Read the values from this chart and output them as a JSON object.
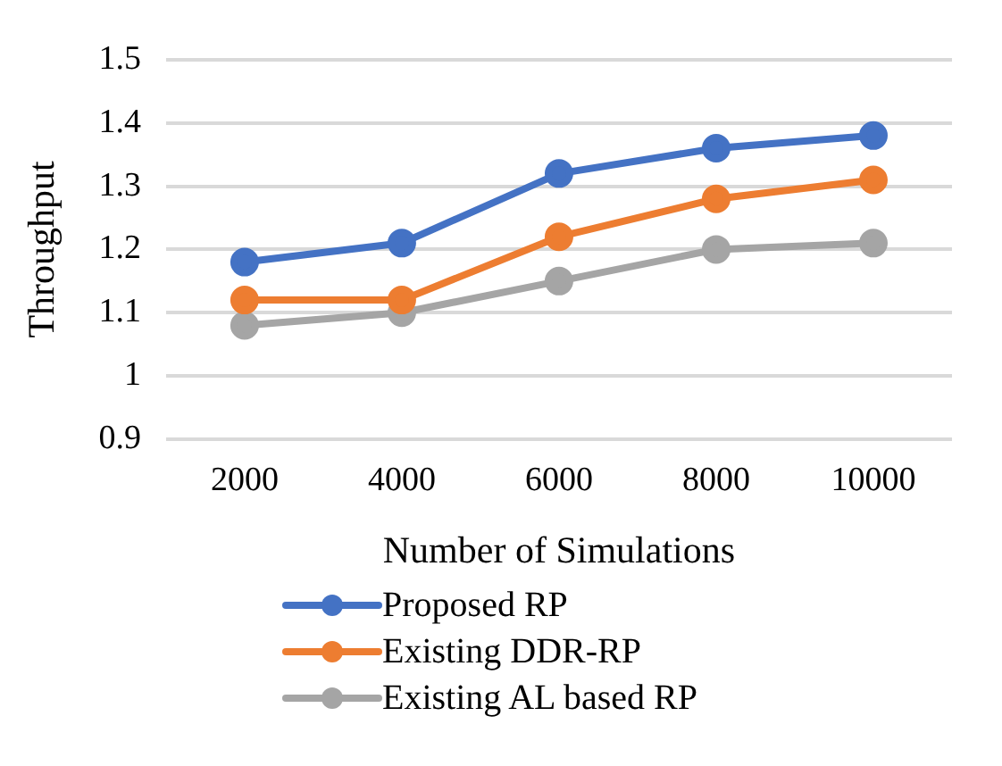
{
  "chart_data": {
    "type": "line",
    "xlabel": "Number of Simulations",
    "ylabel": "Throughput",
    "categories": [
      "2000",
      "4000",
      "6000",
      "8000",
      "10000"
    ],
    "series": [
      {
        "name": "Proposed RP",
        "color": "#4472c4",
        "values": [
          1.18,
          1.21,
          1.32,
          1.36,
          1.38
        ]
      },
      {
        "name": "Existing DDR-RP",
        "color": "#ed7d31",
        "values": [
          1.12,
          1.12,
          1.22,
          1.28,
          1.31
        ]
      },
      {
        "name": "Existing AL based RP",
        "color": "#a5a5a5",
        "values": [
          1.08,
          1.1,
          1.15,
          1.2,
          1.21
        ]
      }
    ],
    "ylim": [
      0.9,
      1.5
    ],
    "yticks": [
      0.9,
      1,
      1.1,
      1.2,
      1.3,
      1.4,
      1.5
    ],
    "grid": "y",
    "legend": "bottom",
    "marker": "circle",
    "line_style": "solid"
  }
}
